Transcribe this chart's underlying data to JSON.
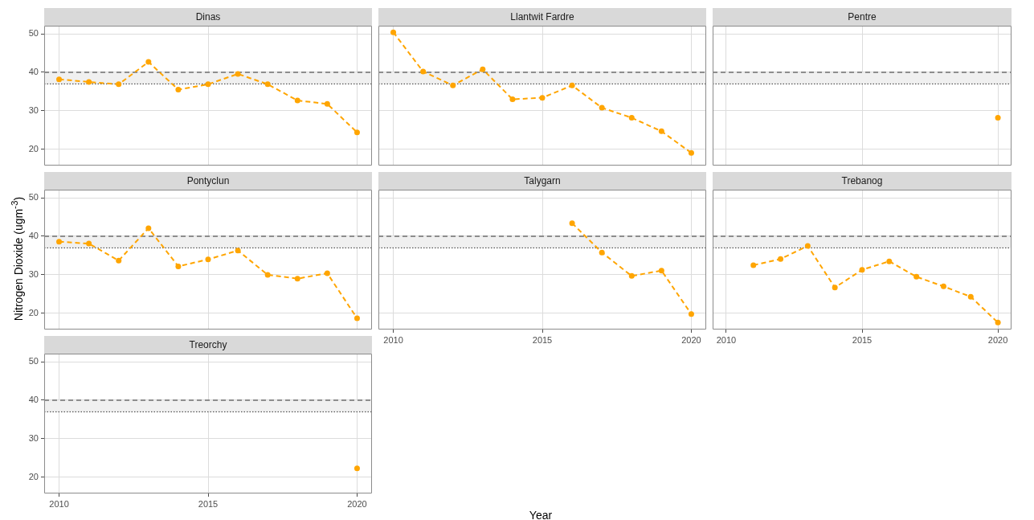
{
  "chart_data": [
    {
      "type": "line",
      "title": "Dinas",
      "x": [
        2010,
        2011,
        2012,
        2013,
        2014,
        2015,
        2016,
        2017,
        2018,
        2019,
        2020
      ],
      "series": [
        {
          "color": "#ffa500",
          "values": [
            38.2,
            37.5,
            36.9,
            42.7,
            35.5,
            36.9,
            39.6,
            36.9,
            32.7,
            31.8,
            24.4
          ]
        }
      ],
      "xlim": [
        2009.5,
        2020.5
      ],
      "xticks": [
        2010,
        2015,
        2020
      ],
      "ylim": [
        15.8,
        52.1
      ],
      "yticks": [
        20,
        30,
        40,
        50
      ],
      "tick_labels": "y",
      "grid": true,
      "marker": "circle",
      "line_style": "dashed",
      "bands": [
        {
          "axis": "y",
          "from": 37,
          "to": 40,
          "color": "#f0f0f0"
        }
      ],
      "ref_lines": [
        {
          "axis": "y",
          "value": 40,
          "line_style": "dashed",
          "color": "#333333"
        },
        {
          "axis": "y",
          "value": 37,
          "line_style": "dotted",
          "color": "#333333"
        }
      ]
    },
    {
      "type": "line",
      "title": "Llantwit Fardre",
      "x": [
        2010,
        2011,
        2012,
        2013,
        2014,
        2015,
        2016,
        2017,
        2018,
        2019,
        2020
      ],
      "series": [
        {
          "color": "#ffa500",
          "values": [
            50.4,
            40.2,
            36.6,
            40.8,
            33.0,
            33.4,
            36.6,
            30.8,
            28.2,
            24.7,
            19.1
          ]
        }
      ],
      "xlim": [
        2009.5,
        2020.5
      ],
      "xticks": [
        2010,
        2015,
        2020
      ],
      "ylim": [
        15.8,
        52.1
      ],
      "yticks": [
        20,
        30,
        40,
        50
      ],
      "tick_labels": false,
      "grid": true,
      "marker": "circle",
      "line_style": "dashed",
      "bands": [
        {
          "axis": "y",
          "from": 37,
          "to": 40,
          "color": "#f0f0f0"
        }
      ],
      "ref_lines": [
        {
          "axis": "y",
          "value": 40,
          "line_style": "dashed",
          "color": "#333333"
        },
        {
          "axis": "y",
          "value": 37,
          "line_style": "dotted",
          "color": "#333333"
        }
      ]
    },
    {
      "type": "line",
      "title": "Pentre",
      "x": [
        2020
      ],
      "series": [
        {
          "color": "#ffa500",
          "values": [
            28.2
          ]
        }
      ],
      "xlim": [
        2009.5,
        2020.5
      ],
      "xticks": [
        2010,
        2015,
        2020
      ],
      "ylim": [
        15.8,
        52.1
      ],
      "yticks": [
        20,
        30,
        40,
        50
      ],
      "tick_labels": false,
      "grid": true,
      "marker": "circle",
      "line_style": "dashed",
      "bands": [
        {
          "axis": "y",
          "from": 37,
          "to": 40,
          "color": "#f0f0f0"
        }
      ],
      "ref_lines": [
        {
          "axis": "y",
          "value": 40,
          "line_style": "dashed",
          "color": "#333333"
        },
        {
          "axis": "y",
          "value": 37,
          "line_style": "dotted",
          "color": "#333333"
        }
      ]
    },
    {
      "type": "line",
      "title": "Pontyclun",
      "ylabel": "Nitrogen Dioxide (ugm$^{-3}$)",
      "x": [
        2010,
        2011,
        2012,
        2013,
        2014,
        2015,
        2016,
        2017,
        2018,
        2019,
        2020
      ],
      "series": [
        {
          "color": "#ffa500",
          "values": [
            38.6,
            38.1,
            33.7,
            42.1,
            32.2,
            34.0,
            36.3,
            30.0,
            29.0,
            30.4,
            18.7
          ]
        }
      ],
      "xlim": [
        2009.5,
        2020.5
      ],
      "xticks": [
        2010,
        2015,
        2020
      ],
      "ylim": [
        15.8,
        52.1
      ],
      "yticks": [
        20,
        30,
        40,
        50
      ],
      "tick_labels": "y",
      "grid": true,
      "marker": "circle",
      "line_style": "dashed",
      "bands": [
        {
          "axis": "y",
          "from": 37,
          "to": 40,
          "color": "#f0f0f0"
        }
      ],
      "ref_lines": [
        {
          "axis": "y",
          "value": 40,
          "line_style": "dashed",
          "color": "#333333"
        },
        {
          "axis": "y",
          "value": 37,
          "line_style": "dotted",
          "color": "#333333"
        }
      ]
    },
    {
      "type": "line",
      "title": "Talygarn",
      "xlabel": "Year",
      "x": [
        2016,
        2017,
        2018,
        2019,
        2020
      ],
      "series": [
        {
          "color": "#ffa500",
          "values": [
            43.4,
            35.8,
            29.7,
            31.1,
            19.8
          ]
        }
      ],
      "xlim": [
        2009.5,
        2020.5
      ],
      "xticks": [
        2010,
        2015,
        2020
      ],
      "ylim": [
        15.8,
        52.1
      ],
      "yticks": [
        20,
        30,
        40,
        50
      ],
      "tick_labels": "x",
      "grid": true,
      "marker": "circle",
      "line_style": "dashed",
      "bands": [
        {
          "axis": "y",
          "from": 37,
          "to": 40,
          "color": "#f0f0f0"
        }
      ],
      "ref_lines": [
        {
          "axis": "y",
          "value": 40,
          "line_style": "dashed",
          "color": "#333333"
        },
        {
          "axis": "y",
          "value": 37,
          "line_style": "dotted",
          "color": "#333333"
        }
      ]
    },
    {
      "type": "line",
      "title": "Trebanog",
      "x": [
        2011,
        2012,
        2013,
        2014,
        2015,
        2016,
        2017,
        2018,
        2019,
        2020
      ],
      "series": [
        {
          "color": "#ffa500",
          "values": [
            32.5,
            34.1,
            37.5,
            26.7,
            31.3,
            33.5,
            29.5,
            27.0,
            24.3,
            17.6
          ]
        }
      ],
      "xlim": [
        2009.5,
        2020.5
      ],
      "xticks": [
        2010,
        2015,
        2020
      ],
      "ylim": [
        15.8,
        52.1
      ],
      "yticks": [
        20,
        30,
        40,
        50
      ],
      "tick_labels": "x",
      "grid": true,
      "marker": "circle",
      "line_style": "dashed",
      "bands": [
        {
          "axis": "y",
          "from": 37,
          "to": 40,
          "color": "#f0f0f0"
        }
      ],
      "ref_lines": [
        {
          "axis": "y",
          "value": 40,
          "line_style": "dashed",
          "color": "#333333"
        },
        {
          "axis": "y",
          "value": 37,
          "line_style": "dotted",
          "color": "#333333"
        }
      ]
    },
    {
      "type": "line",
      "title": "Treorchy",
      "x": [
        2020
      ],
      "series": [
        {
          "color": "#ffa500",
          "values": [
            22.3
          ]
        }
      ],
      "xlim": [
        2009.5,
        2020.5
      ],
      "xticks": [
        2010,
        2015,
        2020
      ],
      "ylim": [
        15.8,
        52.1
      ],
      "yticks": [
        20,
        30,
        40,
        50
      ],
      "grid": true,
      "marker": "circle",
      "line_style": "dashed",
      "bands": [
        {
          "axis": "y",
          "from": 37,
          "to": 40,
          "color": "#f0f0f0"
        }
      ],
      "ref_lines": [
        {
          "axis": "y",
          "value": 40,
          "line_style": "dashed",
          "color": "#333333"
        },
        {
          "axis": "y",
          "value": 37,
          "line_style": "dotted",
          "color": "#333333"
        }
      ]
    }
  ]
}
